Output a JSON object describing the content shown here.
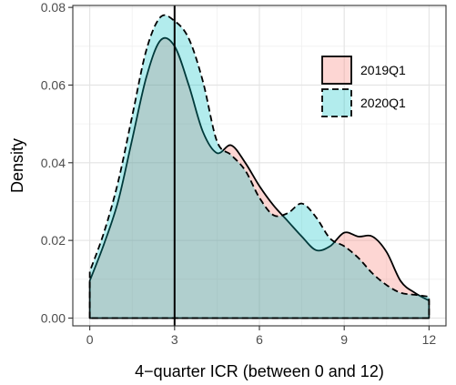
{
  "chart_data": {
    "type": "area",
    "title": "",
    "xlabel": "4−quarter ICR (between 0 and 12)",
    "ylabel": "Density",
    "xlim": [
      -0.6,
      12.6
    ],
    "ylim": [
      -0.002,
      0.0805
    ],
    "xticks": [
      0,
      3,
      6,
      9,
      12
    ],
    "xtick_labels": [
      "0",
      "3",
      "6",
      "9",
      "12"
    ],
    "yticks": [
      0.0,
      0.02,
      0.04,
      0.06,
      0.08
    ],
    "ytick_labels": [
      "0.00",
      "0.02",
      "0.04",
      "0.06",
      "0.08"
    ],
    "grid": true,
    "legend_position": "top-right",
    "vline": 3,
    "series": [
      {
        "name": "2019Q1",
        "fill": "#F8766D",
        "line_style": "solid",
        "x": [
          0,
          0.5,
          1,
          1.5,
          2,
          2.5,
          3,
          3.5,
          4,
          4.5,
          5,
          5.5,
          6,
          6.5,
          7,
          7.5,
          8,
          8.5,
          9,
          9.5,
          10,
          10.5,
          11,
          11.5,
          12
        ],
        "values": [
          0.0096,
          0.019,
          0.03,
          0.046,
          0.062,
          0.0715,
          0.07,
          0.06,
          0.048,
          0.0425,
          0.0445,
          0.04,
          0.034,
          0.029,
          0.025,
          0.021,
          0.0175,
          0.0185,
          0.022,
          0.021,
          0.021,
          0.017,
          0.0095,
          0.0065,
          0.0045
        ]
      },
      {
        "name": "2020Q1",
        "fill": "#00BFC4",
        "line_style": "dashed",
        "x": [
          0,
          0.5,
          1,
          1.5,
          2,
          2.5,
          3,
          3.5,
          4,
          4.5,
          5,
          5.5,
          6,
          6.5,
          7,
          7.5,
          8,
          8.5,
          9,
          9.5,
          10,
          10.5,
          11,
          11.5,
          12
        ],
        "values": [
          0.012,
          0.022,
          0.035,
          0.052,
          0.069,
          0.0775,
          0.0765,
          0.072,
          0.061,
          0.0455,
          0.042,
          0.038,
          0.031,
          0.0265,
          0.027,
          0.0295,
          0.026,
          0.0205,
          0.0185,
          0.0155,
          0.0115,
          0.0085,
          0.0065,
          0.006,
          0.0055
        ]
      }
    ]
  }
}
